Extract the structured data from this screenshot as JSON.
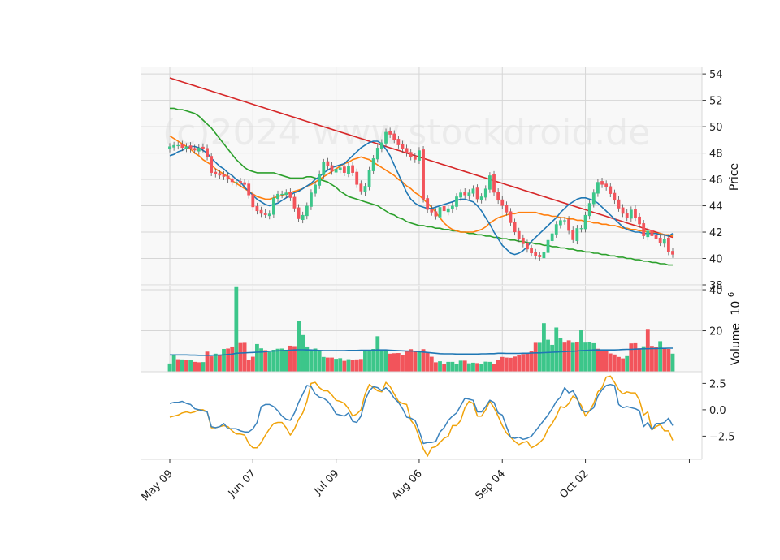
{
  "watermark": "(c)2024 www.stockdroid.de",
  "colors": {
    "up": "#3cc68a",
    "down": "#f2545b",
    "sma20": "#1f77b4",
    "sma50": "#ff7f0e",
    "sma100": "#2ca02c",
    "sma200": "#d62728",
    "volume_ma": "#1f77b4",
    "macd": "#3b83bd",
    "signal": "#f0a30a",
    "panel_bg": "#f8f8f8",
    "grid": "#d6d6d6"
  },
  "chart_data": {
    "type": "candlestick",
    "x_tick_labels": [
      "May 09",
      "Jun 07",
      "Jul 09",
      "Aug 06",
      "Sep 04",
      "Oct 02"
    ],
    "x_tick_index": [
      0,
      20,
      40,
      60,
      80,
      100
    ],
    "price_panel": {
      "ylabel": "Price",
      "ylim": [
        38,
        54.5
      ],
      "y_ticks": [
        38,
        40,
        42,
        44,
        46,
        48,
        50,
        52,
        54
      ],
      "close": [
        48.5,
        48.6,
        48.6,
        48.4,
        48.5,
        48.3,
        48.2,
        48.4,
        48.3,
        47.7,
        46.5,
        46.4,
        46.3,
        46.2,
        46.0,
        45.8,
        45.8,
        45.7,
        45.6,
        44.8,
        43.9,
        43.6,
        43.4,
        43.3,
        43.4,
        44.6,
        44.9,
        44.9,
        45.0,
        44.6,
        43.8,
        43.0,
        43.3,
        44.0,
        45.0,
        45.6,
        46.4,
        47.3,
        47.0,
        46.6,
        46.8,
        46.9,
        46.5,
        47.0,
        46.5,
        45.6,
        45.1,
        45.5,
        46.7,
        47.6,
        48.4,
        48.8,
        49.6,
        49.4,
        49.0,
        48.6,
        48.3,
        48.0,
        47.7,
        47.5,
        48.2,
        44.5,
        43.7,
        43.5,
        43.2,
        43.9,
        43.6,
        43.8,
        44.0,
        44.7,
        45.0,
        44.8,
        45.0,
        45.3,
        44.5,
        44.7,
        45.3,
        46.3,
        45.0,
        44.4,
        44.0,
        43.5,
        42.7,
        42.0,
        41.5,
        41.1,
        40.7,
        40.4,
        40.2,
        40.1,
        40.5,
        41.4,
        41.9,
        42.6,
        42.9,
        42.9,
        42.1,
        41.4,
        42.3,
        42.3,
        43.3,
        44.2,
        45.0,
        45.8,
        45.6,
        45.4,
        44.9,
        44.4,
        43.8,
        43.4,
        43.1,
        43.7,
        43.1,
        42.6,
        41.7,
        42.1,
        41.7,
        41.5,
        41.2,
        41.5,
        40.5,
        40.3
      ],
      "sma20": [
        47.8,
        47.9,
        48.1,
        48.2,
        48.4,
        48.5,
        48.5,
        48.4,
        48.2,
        48.0,
        47.6,
        47.3,
        47.0,
        46.8,
        46.5,
        46.3,
        46.0,
        45.8,
        45.4,
        45.1,
        44.8,
        44.5,
        44.3,
        44.1,
        44.0,
        44.1,
        44.2,
        44.4,
        44.6,
        44.8,
        45.0,
        45.1,
        45.3,
        45.5,
        45.7,
        46.0,
        46.2,
        46.5,
        46.7,
        46.9,
        47.0,
        47.1,
        47.2,
        47.5,
        47.8,
        48.1,
        48.4,
        48.6,
        48.8,
        48.9,
        48.9,
        48.7,
        48.3,
        47.8,
        47.1,
        46.4,
        45.7,
        45.0,
        44.5,
        44.2,
        44.0,
        43.9,
        43.8,
        43.8,
        43.9,
        44.0,
        44.1,
        44.2,
        44.3,
        44.4,
        44.5,
        44.5,
        44.4,
        44.3,
        44.0,
        43.6,
        43.1,
        42.6,
        42.0,
        41.5,
        41.0,
        40.7,
        40.4,
        40.3,
        40.4,
        40.6,
        40.9,
        41.3,
        41.6,
        41.9,
        42.2,
        42.5,
        42.8,
        43.1,
        43.5,
        43.8,
        44.1,
        44.3,
        44.5,
        44.6,
        44.6,
        44.5,
        44.4,
        44.2,
        43.9,
        43.6,
        43.3,
        43.0,
        42.7,
        42.4,
        42.2,
        42.1,
        42.0,
        42.0,
        41.9,
        41.9,
        41.9,
        41.9,
        41.8,
        41.8,
        41.7,
        41.9
      ],
      "sma50": [
        49.3,
        49.1,
        48.9,
        48.7,
        48.5,
        48.3,
        48.0,
        47.8,
        47.5,
        47.3,
        47.1,
        46.8,
        46.6,
        46.4,
        46.2,
        45.9,
        45.7,
        45.5,
        45.3,
        45.1,
        44.9,
        44.7,
        44.6,
        44.5,
        44.5,
        44.6,
        44.7,
        44.8,
        44.9,
        45.0,
        45.1,
        45.2,
        45.3,
        45.5,
        45.6,
        45.8,
        46.0,
        46.2,
        46.4,
        46.6,
        46.8,
        47.0,
        47.2,
        47.3,
        47.5,
        47.6,
        47.7,
        47.6,
        47.5,
        47.3,
        47.1,
        46.9,
        46.7,
        46.5,
        46.3,
        46.0,
        45.8,
        45.5,
        45.3,
        45.0,
        44.8,
        44.5,
        44.2,
        43.9,
        43.5,
        43.1,
        42.7,
        42.4,
        42.2,
        42.1,
        42.0,
        42.0,
        42.0,
        42.0,
        42.1,
        42.2,
        42.4,
        42.7,
        42.9,
        43.1,
        43.2,
        43.3,
        43.4,
        43.4,
        43.5,
        43.5,
        43.5,
        43.5,
        43.5,
        43.4,
        43.3,
        43.3,
        43.2,
        43.2,
        43.1,
        43.1,
        43.0,
        43.0,
        42.9,
        42.9,
        42.8,
        42.8,
        42.7,
        42.7,
        42.6,
        42.6,
        42.5,
        42.5,
        42.4,
        42.3,
        42.3,
        42.2,
        42.2,
        42.1,
        42.1,
        42.0,
        42.0,
        41.9,
        41.9,
        41.8,
        41.8,
        41.7
      ],
      "sma100": [
        51.4,
        51.4,
        51.3,
        51.3,
        51.2,
        51.1,
        51.0,
        50.8,
        50.5,
        50.2,
        49.9,
        49.5,
        49.1,
        48.7,
        48.3,
        47.9,
        47.5,
        47.2,
        46.9,
        46.7,
        46.6,
        46.5,
        46.5,
        46.5,
        46.5,
        46.5,
        46.4,
        46.3,
        46.2,
        46.1,
        46.1,
        46.1,
        46.1,
        46.2,
        46.2,
        46.1,
        46.0,
        45.9,
        45.8,
        45.6,
        45.4,
        45.1,
        44.9,
        44.7,
        44.6,
        44.5,
        44.4,
        44.3,
        44.2,
        44.1,
        44.0,
        43.8,
        43.6,
        43.4,
        43.3,
        43.1,
        43.0,
        42.8,
        42.7,
        42.6,
        42.5,
        42.5,
        42.4,
        42.4,
        42.3,
        42.3,
        42.2,
        42.2,
        42.1,
        42.1,
        42.0,
        42.0,
        41.9,
        41.9,
        41.8,
        41.8,
        41.7,
        41.7,
        41.6,
        41.6,
        41.5,
        41.5,
        41.4,
        41.4,
        41.3,
        41.3,
        41.2,
        41.2,
        41.1,
        41.1,
        41.0,
        41.0,
        40.9,
        40.9,
        40.8,
        40.8,
        40.7,
        40.7,
        40.6,
        40.6,
        40.5,
        40.5,
        40.4,
        40.4,
        40.3,
        40.3,
        40.2,
        40.2,
        40.1,
        40.1,
        40.0,
        40.0,
        39.9,
        39.9,
        39.8,
        39.8,
        39.7,
        39.7,
        39.6,
        39.6,
        39.5,
        39.5
      ],
      "sma200": [
        53.7,
        53.6,
        53.5,
        53.4,
        53.3,
        53.2,
        53.1,
        53.0,
        52.9,
        52.8,
        52.7,
        52.6,
        52.5,
        52.4,
        52.3,
        52.2,
        52.1,
        52.0,
        51.9,
        51.8,
        51.7,
        51.6,
        51.5,
        51.4,
        51.3,
        51.2,
        51.1,
        51.0,
        50.9,
        50.8,
        50.7,
        50.6,
        50.5,
        50.4,
        50.3,
        50.2,
        50.1,
        50.0,
        49.9,
        49.8,
        49.7,
        49.6,
        49.5,
        49.4,
        49.3,
        49.2,
        49.1,
        49.0,
        48.9,
        48.8,
        48.7,
        48.6,
        48.5,
        48.4,
        48.3,
        48.2,
        48.1,
        48.0,
        47.9,
        47.8,
        47.7,
        47.6,
        47.5,
        47.4,
        47.3,
        47.2,
        47.1,
        47.0,
        46.9,
        46.8,
        46.7,
        46.6,
        46.5,
        46.4,
        46.3,
        46.2,
        46.1,
        46.0,
        45.9,
        45.8,
        45.7,
        45.6,
        45.5,
        45.4,
        45.3,
        45.2,
        45.1,
        45.0,
        44.9,
        44.8,
        44.7,
        44.6,
        44.5,
        44.4,
        44.3,
        44.2,
        44.1,
        44.0,
        43.9,
        43.8,
        43.7,
        43.6,
        43.5,
        43.4,
        43.3,
        43.2,
        43.1,
        43.0,
        42.9,
        42.8,
        42.7,
        42.6,
        42.5,
        42.4,
        42.3,
        42.2,
        42.1,
        42.0,
        41.9,
        41.8,
        41.7,
        41.6
      ]
    },
    "volume_panel": {
      "ylabel": "Volume  10^6",
      "ylabel_text": "Volume",
      "ylabel_exp": "10",
      "ylabel_exp_power": "6",
      "ylim": [
        0,
        42
      ],
      "y_ticks": [
        20,
        40
      ],
      "values": [
        4.0,
        8.3,
        6.1,
        6.0,
        5.6,
        5.6,
        4.8,
        4.6,
        4.7,
        9.8,
        7.5,
        8.8,
        8.3,
        11.1,
        11.3,
        12.3,
        41.3,
        14.0,
        14.1,
        5.7,
        7.3,
        13.5,
        11.4,
        10.5,
        9.6,
        10.7,
        11.2,
        11.3,
        10.7,
        12.7,
        12.5,
        24.6,
        17.9,
        12.3,
        10.6,
        11.3,
        10.4,
        7.2,
        6.9,
        6.9,
        6.3,
        6.6,
        5.3,
        6.1,
        5.8,
        6.0,
        6.2,
        10.0,
        10.2,
        11.1,
        17.3,
        10.5,
        10.5,
        8.8,
        9.0,
        9.1,
        8.1,
        10.3,
        11.0,
        10.2,
        10.0,
        11.0,
        9.1,
        7.3,
        4.6,
        5.1,
        3.7,
        4.8,
        4.8,
        3.7,
        5.4,
        5.4,
        4.1,
        4.4,
        4.2,
        3.8,
        4.9,
        4.8,
        3.7,
        5.7,
        7.2,
        6.9,
        6.8,
        7.4,
        8.2,
        8.6,
        8.8,
        9.9,
        14.1,
        14.1,
        23.7,
        15.6,
        13.1,
        21.6,
        16.4,
        14.2,
        15.3,
        14.1,
        14.5,
        20.4,
        14.2,
        14.5,
        13.9,
        11.2,
        10.2,
        10.2,
        8.9,
        8.4,
        7.2,
        6.5,
        7.6,
        13.8,
        13.9,
        11.4,
        12.4,
        20.9,
        12.6,
        12.1,
        14.9,
        11.4,
        11.1,
        8.8
      ],
      "up": [
        1,
        1,
        0,
        1,
        0,
        1,
        0,
        0,
        1,
        0,
        0,
        1,
        0,
        1,
        0,
        0,
        1,
        0,
        0,
        0,
        0,
        1,
        1,
        0,
        1,
        1,
        1,
        1,
        1,
        0,
        0,
        1,
        1,
        1,
        1,
        1,
        1,
        1,
        0,
        0,
        1,
        1,
        0,
        1,
        0,
        0,
        0,
        1,
        1,
        1,
        1,
        1,
        1,
        0,
        0,
        0,
        0,
        0,
        0,
        0,
        1,
        0,
        0,
        0,
        0,
        1,
        0,
        1,
        1,
        1,
        1,
        0,
        1,
        1,
        0,
        1,
        1,
        1,
        0,
        0,
        0,
        0,
        0,
        0,
        0,
        0,
        0,
        0,
        0,
        1,
        1,
        1,
        1,
        1,
        1,
        0,
        0,
        1,
        0,
        1,
        1,
        1,
        1,
        0,
        0,
        0,
        0,
        0,
        0,
        0,
        1,
        0,
        0,
        0,
        1,
        0,
        0,
        0,
        1,
        0,
        0,
        1
      ],
      "ma": [
        8.2,
        8.2,
        8.2,
        8.2,
        8.2,
        8.1,
        8.1,
        8.0,
        8.0,
        8.0,
        8.0,
        8.1,
        8.1,
        8.2,
        8.4,
        8.6,
        9.0,
        9.1,
        9.2,
        9.3,
        9.4,
        9.5,
        9.6,
        9.8,
        10.0,
        10.1,
        10.2,
        10.3,
        10.4,
        10.5,
        10.6,
        10.7,
        10.7,
        10.6,
        10.6,
        10.5,
        10.4,
        10.3,
        10.3,
        10.3,
        10.3,
        10.3,
        10.3,
        10.4,
        10.4,
        10.4,
        10.5,
        10.5,
        10.5,
        10.5,
        10.6,
        10.6,
        10.6,
        10.5,
        10.4,
        10.3,
        10.2,
        10.1,
        10.1,
        10.0,
        9.8,
        9.6,
        9.4,
        9.2,
        9.0,
        8.8,
        8.7,
        8.7,
        8.7,
        8.6,
        8.6,
        8.6,
        8.6,
        8.6,
        8.6,
        8.7,
        8.7,
        8.8,
        8.8,
        9.0,
        9.0,
        8.9,
        8.9,
        8.9,
        8.9,
        9.0,
        9.0,
        9.1,
        9.2,
        9.2,
        9.3,
        9.4,
        9.5,
        9.6,
        9.7,
        9.8,
        10.0,
        10.0,
        10.1,
        10.3,
        10.4,
        10.5,
        10.6,
        10.6,
        10.6,
        10.6,
        10.6,
        10.6,
        10.7,
        10.8,
        10.9,
        10.9,
        11.0,
        11.1,
        11.2,
        11.2,
        11.3,
        11.3,
        11.4,
        11.4,
        11.5,
        11.5
      ]
    },
    "macd_panel": {
      "ylim": [
        -4.7,
        3.3
      ],
      "y_ticks": [
        2.5,
        0.0,
        -2.5
      ],
      "y_tick_labels": [
        "2.5",
        "0.0",
        "−2.5"
      ],
      "macd": [
        0.6,
        0.7,
        0.7,
        0.8,
        0.6,
        0.5,
        0.1,
        0.0,
        -0.1,
        -0.2,
        -1.6,
        -1.7,
        -1.6,
        -1.3,
        -1.8,
        -1.8,
        -1.8,
        -2.0,
        -2.1,
        -2.1,
        -1.8,
        -1.2,
        0.3,
        0.5,
        0.5,
        0.3,
        -0.1,
        -0.6,
        -0.9,
        -1.0,
        -0.3,
        0.7,
        1.5,
        2.3,
        2.2,
        1.5,
        1.2,
        1.1,
        0.8,
        0.3,
        -0.4,
        -0.5,
        -0.6,
        -0.3,
        -1.1,
        -1.2,
        -0.6,
        0.9,
        1.8,
        2.2,
        2.1,
        1.8,
        2.1,
        1.7,
        1.1,
        0.7,
        0.1,
        -0.7,
        -0.8,
        -1.0,
        -2.0,
        -3.2,
        -3.1,
        -3.1,
        -3.0,
        -2.1,
        -1.7,
        -1.0,
        -0.6,
        -0.3,
        0.4,
        1.1,
        1.0,
        0.9,
        -0.2,
        -0.2,
        0.3,
        0.9,
        0.7,
        -0.3,
        -0.5,
        -1.6,
        -2.6,
        -2.7,
        -2.6,
        -2.8,
        -2.7,
        -2.5,
        -2.0,
        -1.5,
        -1.0,
        -0.5,
        0.1,
        0.8,
        1.2,
        2.1,
        1.6,
        1.8,
        1.1,
        0.0,
        -0.2,
        -0.1,
        0.2,
        1.3,
        1.9,
        2.3,
        2.4,
        2.3,
        0.5,
        0.2,
        0.3,
        0.2,
        0.1,
        -0.1,
        -1.6,
        -1.2,
        -1.9,
        -1.3,
        -1.3,
        -1.2,
        -0.8,
        -1.5
      ],
      "signal": [
        -0.7,
        -0.6,
        -0.5,
        -0.3,
        -0.2,
        -0.3,
        -0.2,
        0.0,
        0.0,
        -0.2,
        -1.7,
        -1.7,
        -1.6,
        -1.5,
        -1.6,
        -2.0,
        -2.3,
        -2.3,
        -2.4,
        -3.2,
        -3.6,
        -3.6,
        -3.1,
        -2.4,
        -1.8,
        -1.3,
        -1.2,
        -1.2,
        -1.7,
        -2.4,
        -1.8,
        -0.9,
        -0.3,
        0.8,
        2.5,
        2.6,
        2.1,
        1.8,
        1.8,
        1.4,
        0.9,
        0.8,
        0.6,
        0.1,
        -0.6,
        -0.4,
        0.0,
        1.5,
        2.4,
        2.1,
        1.8,
        1.7,
        2.6,
        2.2,
        1.5,
        0.8,
        0.6,
        0.5,
        -1.0,
        -1.5,
        -2.6,
        -3.7,
        -4.4,
        -3.6,
        -3.5,
        -3.1,
        -2.7,
        -2.5,
        -1.5,
        -1.5,
        -1.0,
        0.2,
        0.8,
        0.6,
        -0.6,
        -0.6,
        0.0,
        0.8,
        0.2,
        -0.6,
        -1.5,
        -2.2,
        -2.6,
        -3.0,
        -3.3,
        -3.1,
        -3.0,
        -3.6,
        -3.4,
        -3.1,
        -2.7,
        -1.8,
        -1.3,
        -0.6,
        0.3,
        0.2,
        0.6,
        1.3,
        1.0,
        0.4,
        -0.6,
        -0.1,
        0.6,
        1.7,
        2.1,
        3.1,
        3.2,
        2.6,
        1.9,
        1.5,
        1.7,
        1.6,
        1.6,
        0.9,
        -0.5,
        -0.2,
        -1.9,
        -1.6,
        -1.4,
        -2.0,
        -2.0,
        -2.9
      ]
    }
  }
}
